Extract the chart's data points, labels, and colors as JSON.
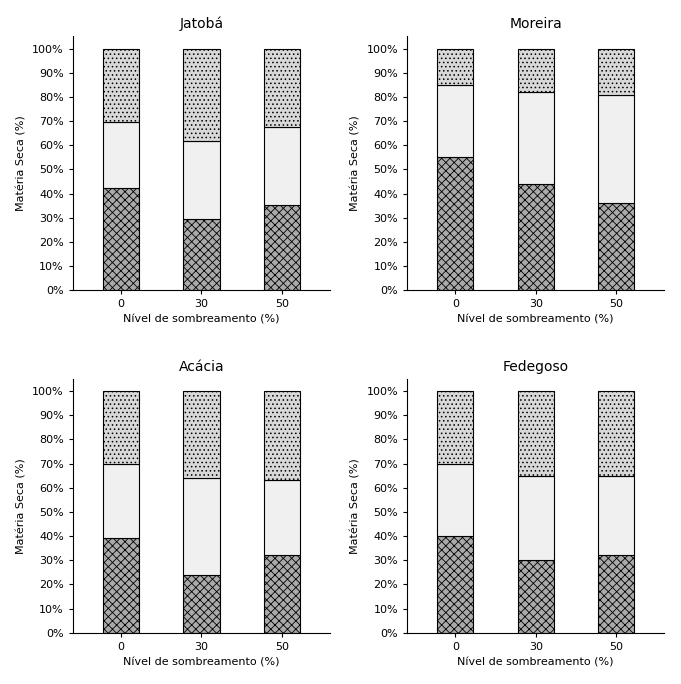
{
  "species": [
    "Jatobá",
    "Moreira",
    "Acácia",
    "Fedegoso"
  ],
  "categories": [
    0,
    30,
    50
  ],
  "data": {
    "Jatobá": {
      "roots": [
        42,
        29,
        35
      ],
      "stems": [
        27,
        32,
        32
      ],
      "leaves": [
        30,
        38,
        32
      ]
    },
    "Moreira": {
      "roots": [
        55,
        44,
        36
      ],
      "stems": [
        30,
        38,
        45
      ],
      "leaves": [
        15,
        18,
        19
      ]
    },
    "Acácia": {
      "roots": [
        39,
        24,
        32
      ],
      "stems": [
        31,
        40,
        31
      ],
      "leaves": [
        30,
        36,
        37
      ]
    },
    "Fedegoso": {
      "roots": [
        40,
        30,
        32
      ],
      "stems": [
        30,
        35,
        33
      ],
      "leaves": [
        30,
        35,
        35
      ]
    }
  },
  "xlabel": "Nível de sombreamento (%)",
  "ylabel": "Matéria Seca (%)",
  "bar_width": 0.45,
  "tick_labels": [
    "0",
    "30",
    "50"
  ],
  "yticks": [
    0,
    10,
    20,
    30,
    40,
    50,
    60,
    70,
    80,
    90,
    100
  ],
  "ytick_labels": [
    "0%",
    "10%",
    "20%",
    "30%",
    "40%",
    "50%",
    "60%",
    "70%",
    "80%",
    "90%",
    "100%"
  ],
  "hatch_roots": "xxxx",
  "hatch_stems": "",
  "hatch_leaves": "....",
  "color_roots": "#aaaaaa",
  "color_stems": "#f0f0f0",
  "color_leaves": "#d8d8d8",
  "edgecolor": "black",
  "title_fontsize": 10,
  "axis_fontsize": 8,
  "tick_fontsize": 8,
  "label_fontsize": 8
}
